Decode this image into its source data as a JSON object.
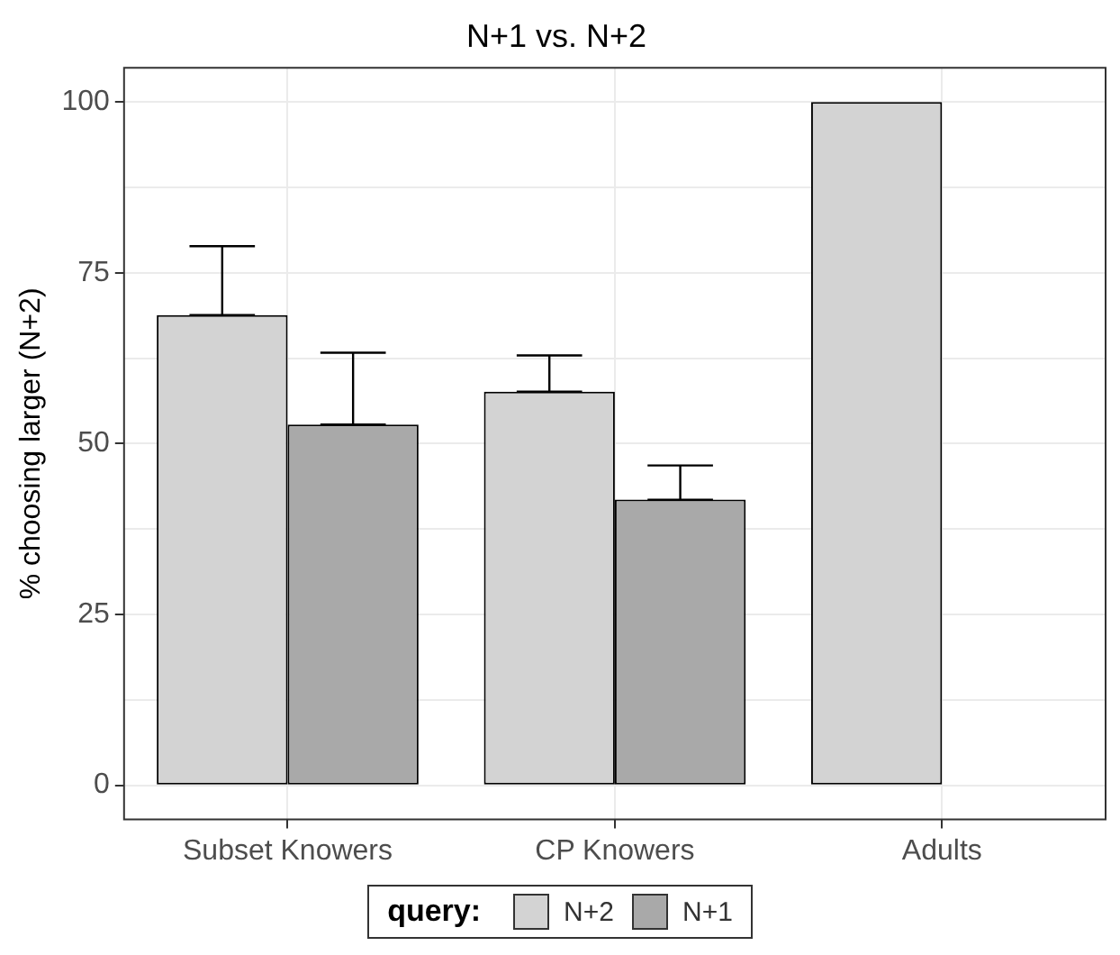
{
  "chart_data": {
    "type": "bar",
    "title": "N+1 vs. N+2",
    "ylabel": "% choosing larger (N+2)",
    "legend_title": "query:",
    "categories": [
      "Subset Knowers",
      "CP Knowers",
      "Adults"
    ],
    "series": [
      {
        "name": "N+2",
        "color": "#d3d3d3",
        "values": [
          68.8,
          57.6,
          100
        ],
        "errors": [
          [
            68.8,
            78.9
          ],
          [
            57.6,
            62.9
          ],
          null
        ]
      },
      {
        "name": "N+1",
        "color": "#a9a9a9",
        "values": [
          52.8,
          41.8,
          0
        ],
        "errors": [
          [
            52.8,
            63.3
          ],
          [
            41.8,
            46.8
          ],
          null
        ]
      }
    ],
    "ylim": [
      -5,
      105
    ],
    "yticks": [
      0,
      {
        "value": 12.5,
        "label": null
      },
      25,
      {
        "value": 37.5,
        "label": null
      },
      50,
      {
        "value": 62.5,
        "label": null
      },
      75,
      {
        "value": 87.5,
        "label": null
      },
      100
    ],
    "grid": true,
    "legend": "bottom"
  }
}
